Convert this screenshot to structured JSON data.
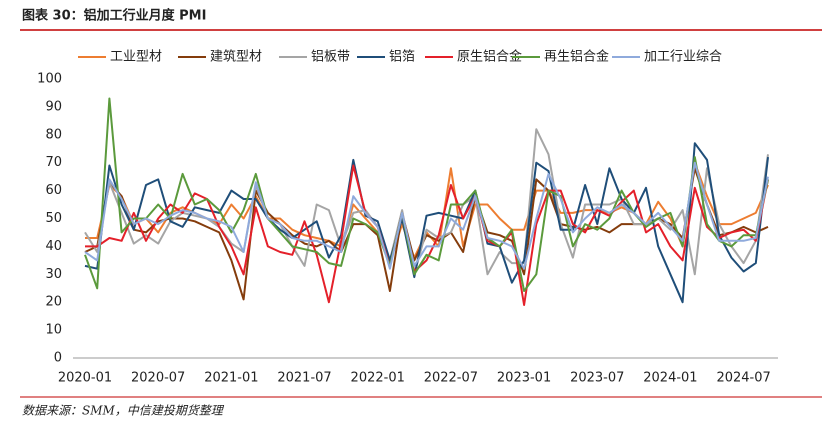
{
  "header": {
    "title": "图表 30：铝加工行业月度 PMI"
  },
  "footer": {
    "source": "数据来源：SMM，中信建投期货整理"
  },
  "chart_data": {
    "type": "line",
    "categories": [
      "2020-01",
      null,
      null,
      null,
      null,
      null,
      "2020-07",
      null,
      null,
      null,
      null,
      null,
      "2021-01",
      null,
      null,
      null,
      null,
      null,
      "2021-07",
      null,
      null,
      null,
      null,
      null,
      "2022-01",
      null,
      null,
      null,
      null,
      null,
      "2022-07",
      null,
      null,
      null,
      null,
      null,
      "2023-01",
      null,
      null,
      null,
      null,
      null,
      "2023-07",
      null,
      null,
      null,
      null,
      null,
      "2024-01",
      null,
      null,
      null,
      null,
      null,
      "2024-07",
      null,
      null
    ],
    "ylim": [
      0,
      100
    ],
    "yticks": [
      0,
      10,
      20,
      30,
      40,
      50,
      60,
      70,
      80,
      90,
      100
    ],
    "legend": "top",
    "series": [
      {
        "name": "工业型材",
        "color": "#ed7d31",
        "values": [
          43,
          43,
          62,
          58,
          48,
          50,
          45,
          52,
          54,
          52,
          50,
          48,
          55,
          50,
          58,
          50,
          50,
          46,
          44,
          43,
          42,
          40,
          55,
          50,
          45,
          34,
          48,
          36,
          45,
          40,
          68,
          40,
          55,
          55,
          50,
          46,
          46,
          60,
          60,
          52,
          52,
          53,
          53,
          52,
          54,
          52,
          48,
          56,
          50,
          40,
          70,
          58,
          48,
          48,
          50,
          52,
          62
        ]
      },
      {
        "name": "建筑型材",
        "color": "#843c0c",
        "values": [
          38,
          40,
          63,
          58,
          46,
          45,
          49,
          50,
          50,
          49,
          47,
          45,
          35,
          21,
          60,
          52,
          48,
          44,
          41,
          40,
          42,
          38,
          48,
          48,
          44,
          24,
          52,
          35,
          44,
          42,
          45,
          38,
          58,
          45,
          44,
          42,
          30,
          64,
          60,
          48,
          47,
          46,
          47,
          45,
          48,
          48,
          48,
          50,
          48,
          43,
          68,
          55,
          44,
          45,
          47,
          45,
          47
        ]
      },
      {
        "name": "铝板带",
        "color": "#a5a5a5",
        "values": [
          45,
          38,
          63,
          52,
          41,
          44,
          41,
          49,
          52,
          51,
          50,
          47,
          41,
          38,
          62,
          50,
          48,
          40,
          33,
          55,
          53,
          40,
          52,
          53,
          47,
          35,
          53,
          30,
          46,
          43,
          45,
          55,
          58,
          30,
          38,
          34,
          34,
          82,
          73,
          48,
          36,
          55,
          55,
          55,
          57,
          48,
          48,
          50,
          46,
          53,
          30,
          68,
          48,
          40,
          34,
          42,
          73
        ]
      },
      {
        "name": "铝箔",
        "color": "#1f4e79",
        "values": [
          33,
          32,
          69,
          55,
          46,
          62,
          64,
          49,
          47,
          54,
          53,
          52,
          60,
          57,
          57,
          50,
          46,
          43,
          46,
          49,
          36,
          44,
          71,
          51,
          49,
          35,
          50,
          29,
          51,
          52,
          51,
          50,
          60,
          41,
          40,
          27,
          35,
          70,
          67,
          46,
          46,
          62,
          48,
          68,
          57,
          52,
          61,
          40,
          30,
          20,
          77,
          71,
          44,
          36,
          31,
          34,
          72
        ]
      },
      {
        "name": "原生铝合金",
        "color": "#e4202a",
        "values": [
          40,
          40,
          43,
          42,
          52,
          42,
          50,
          55,
          52,
          59,
          57,
          47,
          40,
          30,
          54,
          40,
          38,
          37,
          49,
          37,
          20,
          42,
          69,
          52,
          47,
          33,
          52,
          31,
          35,
          44,
          62,
          50,
          58,
          42,
          40,
          45,
          19,
          48,
          60,
          60,
          48,
          45,
          53,
          51,
          56,
          60,
          45,
          48,
          40,
          35,
          61,
          47,
          43,
          45,
          46,
          42,
          64
        ]
      },
      {
        "name": "再生铝合金",
        "color": "#5b9a3c",
        "values": [
          37,
          25,
          93,
          45,
          50,
          50,
          55,
          50,
          66,
          55,
          57,
          53,
          45,
          53,
          66,
          50,
          45,
          40,
          39,
          38,
          34,
          33,
          50,
          48,
          45,
          33,
          52,
          30,
          37,
          35,
          55,
          55,
          60,
          43,
          40,
          46,
          24,
          30,
          60,
          58,
          40,
          48,
          46,
          50,
          60,
          52,
          47,
          50,
          52,
          40,
          72,
          48,
          42,
          40,
          44,
          44,
          64
        ]
      },
      {
        "name": "加工行业综合",
        "color": "#8faadc",
        "values": [
          38,
          35,
          64,
          57,
          48,
          50,
          48,
          51,
          53,
          52,
          50,
          49,
          47,
          38,
          63,
          50,
          48,
          43,
          42,
          42,
          40,
          38,
          58,
          52,
          47,
          32,
          52,
          33,
          40,
          40,
          50,
          46,
          58,
          43,
          42,
          40,
          32,
          50,
          66,
          57,
          45,
          50,
          54,
          52,
          55,
          52,
          48,
          52,
          47,
          42,
          70,
          55,
          42,
          42,
          42,
          43,
          65
        ]
      }
    ]
  }
}
